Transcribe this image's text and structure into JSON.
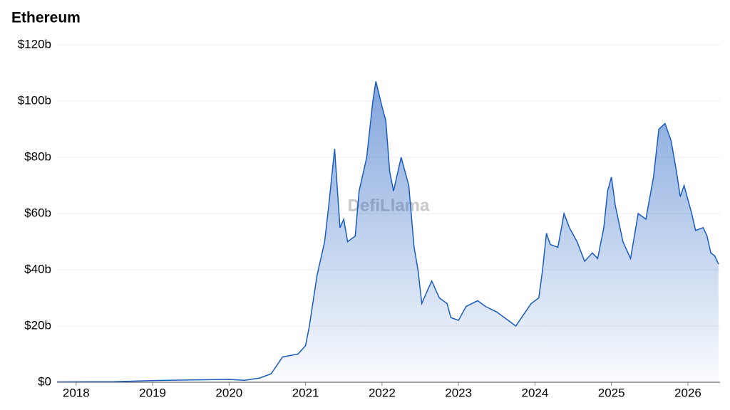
{
  "chart_data": {
    "type": "area",
    "title": "Ethereum",
    "watermark": "DefiLlama",
    "color": "#1a5bbf",
    "grid": true,
    "xlim": [
      2017.75,
      2026.42
    ],
    "xticks": [
      2018,
      2019,
      2020,
      2021,
      2022,
      2023,
      2024,
      2025,
      2026
    ],
    "ylim": [
      0,
      120
    ],
    "yticks": [
      {
        "value": 0,
        "label": "$0"
      },
      {
        "value": 20,
        "label": "$20b"
      },
      {
        "value": 40,
        "label": "$40b"
      },
      {
        "value": 60,
        "label": "$60b"
      },
      {
        "value": 80,
        "label": "$80b"
      },
      {
        "value": 100,
        "label": "$100b"
      },
      {
        "value": 120,
        "label": "$120b"
      }
    ],
    "x": [
      2017.75,
      2018.5,
      2019.0,
      2019.5,
      2020.0,
      2020.2,
      2020.4,
      2020.55,
      2020.7,
      2020.9,
      2021.0,
      2021.05,
      2021.15,
      2021.25,
      2021.3,
      2021.38,
      2021.45,
      2021.5,
      2021.55,
      2021.65,
      2021.7,
      2021.8,
      2021.88,
      2021.92,
      2022.0,
      2022.05,
      2022.1,
      2022.15,
      2022.25,
      2022.35,
      2022.42,
      2022.47,
      2022.52,
      2022.6,
      2022.65,
      2022.75,
      2022.85,
      2022.9,
      2023.0,
      2023.1,
      2023.25,
      2023.35,
      2023.5,
      2023.65,
      2023.75,
      2023.85,
      2023.95,
      2024.05,
      2024.1,
      2024.15,
      2024.2,
      2024.3,
      2024.38,
      2024.45,
      2024.55,
      2024.65,
      2024.75,
      2024.82,
      2024.9,
      2024.95,
      2025.0,
      2025.05,
      2025.15,
      2025.25,
      2025.35,
      2025.45,
      2025.55,
      2025.62,
      2025.7,
      2025.78,
      2025.85,
      2025.9,
      2025.95,
      2026.05,
      2026.1,
      2026.2,
      2026.25,
      2026.3,
      2026.35,
      2026.4
    ],
    "values": [
      0.1,
      0.2,
      0.6,
      0.8,
      1.0,
      0.7,
      1.5,
      3,
      9,
      10,
      13,
      20,
      38,
      50,
      62,
      83,
      55,
      58,
      50,
      52,
      68,
      80,
      100,
      107,
      98,
      93,
      75,
      68,
      80,
      70,
      48,
      40,
      28,
      33,
      36,
      30,
      28,
      23,
      22,
      27,
      29,
      27,
      25,
      22,
      20,
      24,
      28,
      30,
      40,
      53,
      49,
      48,
      60,
      55,
      50,
      43,
      46,
      44,
      55,
      68,
      73,
      63,
      50,
      44,
      60,
      58,
      73,
      90,
      92,
      86,
      75,
      66,
      70,
      60,
      54,
      55,
      52,
      46,
      45,
      42
    ]
  }
}
